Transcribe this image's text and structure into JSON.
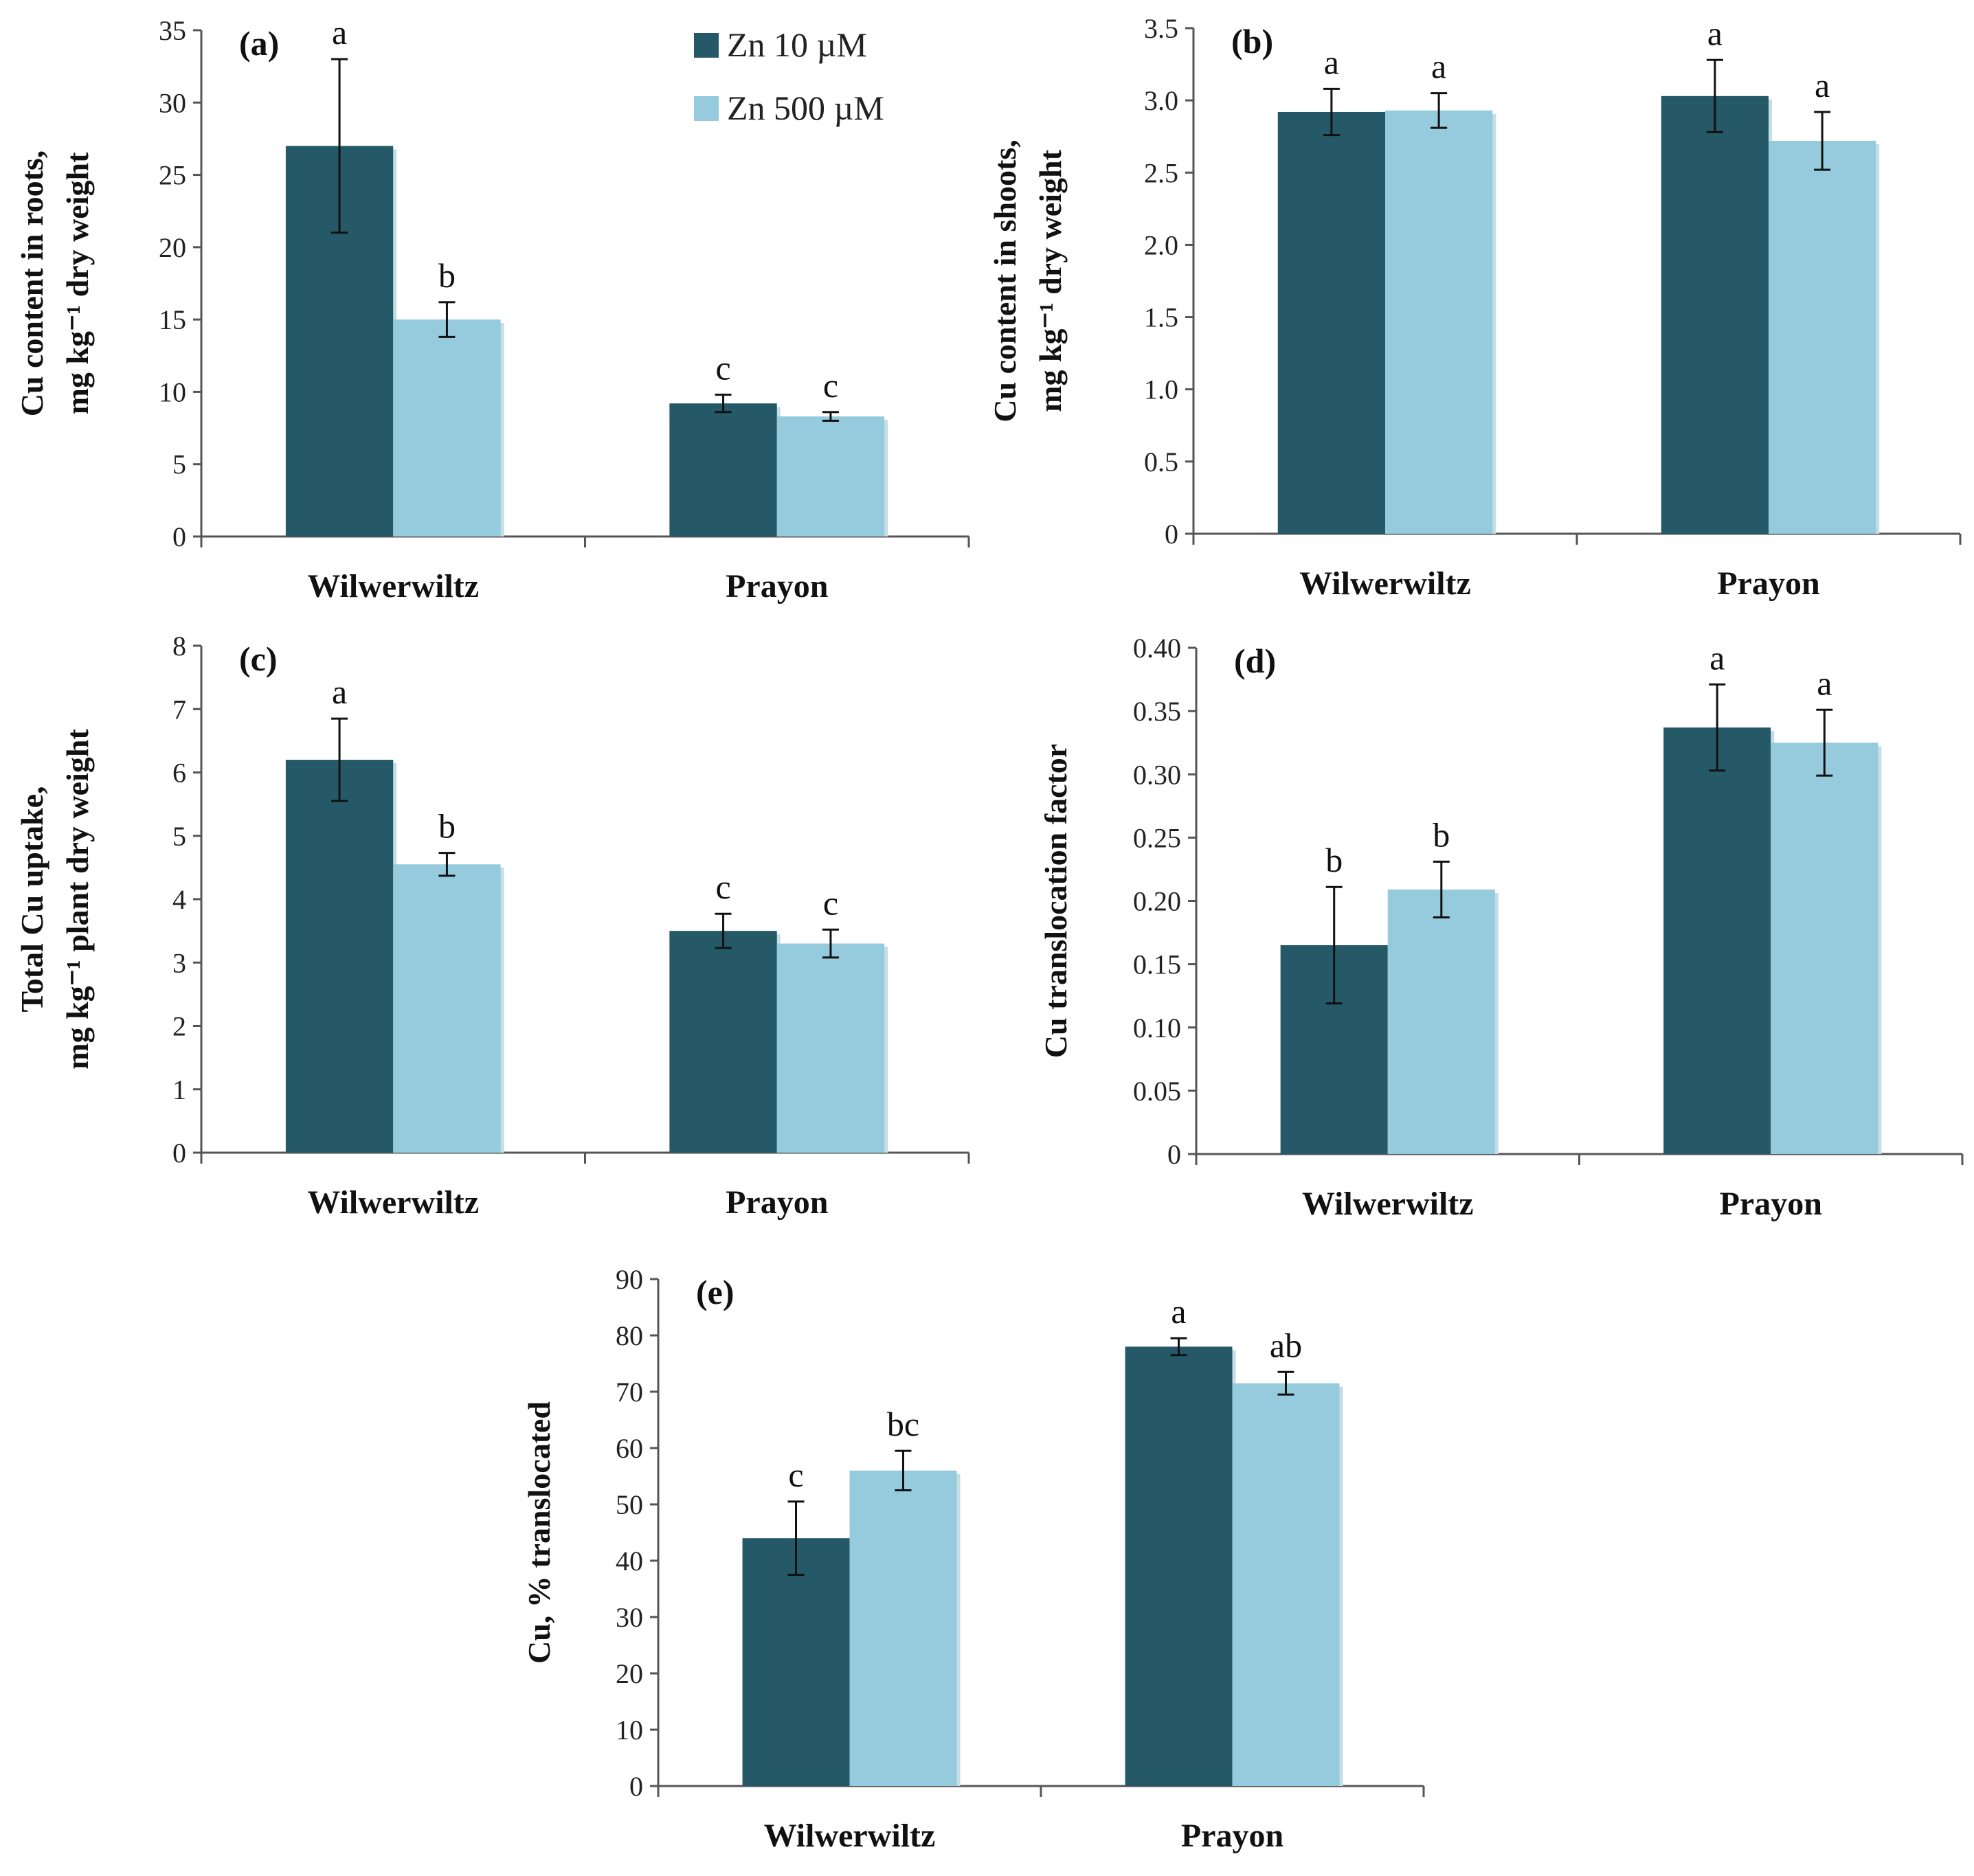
{
  "colors": {
    "zn10": "#255968",
    "zn500": "#95cbdc",
    "shadow": "#c4dde6",
    "axis": "#555555",
    "text": "#111111"
  },
  "legend": {
    "zn10_label": "Zn 10 µM",
    "zn500_label": "Zn 500 µM"
  },
  "chart_data": [
    {
      "id": "a",
      "type": "bar",
      "panel_label": "(a)",
      "ylabel_line1": "Cu content in roots,",
      "ylabel_line2": "mg kg⁻¹ dry weight",
      "categories": [
        "Wilwerwiltz",
        "Prayon"
      ],
      "ylim": [
        0,
        35
      ],
      "yticks": [
        "0",
        "5",
        "10",
        "15",
        "20",
        "25",
        "30",
        "35"
      ],
      "series": [
        {
          "name": "Zn 10 µM",
          "values": [
            27,
            9.2
          ],
          "errors": [
            6,
            0.6
          ],
          "letters": [
            "a",
            "c"
          ]
        },
        {
          "name": "Zn 500 µM",
          "values": [
            15,
            8.3
          ],
          "errors": [
            1.2,
            0.3
          ],
          "letters": [
            "b",
            "c"
          ]
        }
      ]
    },
    {
      "id": "b",
      "type": "bar",
      "panel_label": "(b)",
      "ylabel_line1": "Cu content in shoots,",
      "ylabel_line2": "mg kg⁻¹ dry weight",
      "categories": [
        "Wilwerwiltz",
        "Prayon"
      ],
      "ylim": [
        0,
        3.5
      ],
      "yticks": [
        "0",
        "0.5",
        "1.0",
        "1.5",
        "2.0",
        "2.5",
        "3.0",
        "3.5"
      ],
      "series": [
        {
          "name": "Zn 10 µM",
          "values": [
            2.92,
            3.03
          ],
          "errors": [
            0.16,
            0.25
          ],
          "letters": [
            "a",
            "a"
          ]
        },
        {
          "name": "Zn 500 µM",
          "values": [
            2.93,
            2.72
          ],
          "errors": [
            0.12,
            0.2
          ],
          "letters": [
            "a",
            "a"
          ]
        }
      ]
    },
    {
      "id": "c",
      "type": "bar",
      "panel_label": "(c)",
      "ylabel_line1": "Total Cu uptake,",
      "ylabel_line2": "mg kg⁻¹ plant dry weight",
      "categories": [
        "Wilwerwiltz",
        "Prayon"
      ],
      "ylim": [
        0,
        8
      ],
      "yticks": [
        "0",
        "1",
        "2",
        "3",
        "4",
        "5",
        "6",
        "7",
        "8"
      ],
      "series": [
        {
          "name": "Zn 10 µM",
          "values": [
            6.2,
            3.5
          ],
          "errors": [
            0.65,
            0.27
          ],
          "letters": [
            "a",
            "c"
          ]
        },
        {
          "name": "Zn 500 µM",
          "values": [
            4.55,
            3.3
          ],
          "errors": [
            0.18,
            0.22
          ],
          "letters": [
            "b",
            "c"
          ]
        }
      ]
    },
    {
      "id": "d",
      "type": "bar",
      "panel_label": "(d)",
      "ylabel_line1": "Cu translocation factor",
      "ylabel_line2": "",
      "categories": [
        "Wilwerwiltz",
        "Prayon"
      ],
      "ylim": [
        0,
        0.4
      ],
      "yticks": [
        "0",
        "0.05",
        "0.10",
        "0.15",
        "0.20",
        "0.25",
        "0.30",
        "0.35",
        "0.40"
      ],
      "series": [
        {
          "name": "Zn 10 µM",
          "values": [
            0.165,
            0.337
          ],
          "errors": [
            0.046,
            0.034
          ],
          "letters": [
            "b",
            "a"
          ]
        },
        {
          "name": "Zn 500 µM",
          "values": [
            0.209,
            0.325
          ],
          "errors": [
            0.022,
            0.026
          ],
          "letters": [
            "b",
            "a"
          ]
        }
      ]
    },
    {
      "id": "e",
      "type": "bar",
      "panel_label": "(e)",
      "ylabel_line1": "Cu, % translocated",
      "ylabel_line2": "",
      "categories": [
        "Wilwerwiltz",
        "Prayon"
      ],
      "ylim": [
        0,
        90
      ],
      "yticks": [
        "0",
        "10",
        "20",
        "30",
        "40",
        "50",
        "60",
        "70",
        "80",
        "90"
      ],
      "series": [
        {
          "name": "Zn 10 µM",
          "values": [
            44,
            78
          ],
          "errors": [
            6.5,
            1.5
          ],
          "letters": [
            "c",
            "a"
          ]
        },
        {
          "name": "Zn 500 µM",
          "values": [
            56,
            71.5
          ],
          "errors": [
            3.5,
            2
          ],
          "letters": [
            "bc",
            "ab"
          ]
        }
      ]
    }
  ]
}
